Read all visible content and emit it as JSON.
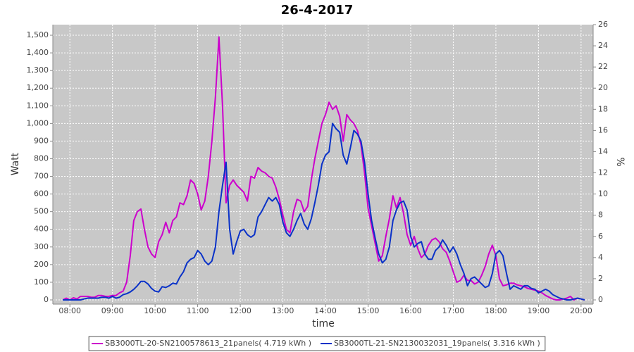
{
  "chart_data": {
    "type": "line",
    "title": "26-4-2017",
    "xlabel": "time",
    "ylabel": "Watt",
    "y2label": "%",
    "x": [
      "07:50",
      "07:55",
      "08:00",
      "08:05",
      "08:10",
      "08:15",
      "08:20",
      "08:25",
      "08:30",
      "08:35",
      "08:40",
      "08:45",
      "08:50",
      "08:55",
      "09:00",
      "09:05",
      "09:10",
      "09:15",
      "09:20",
      "09:25",
      "09:30",
      "09:35",
      "09:40",
      "09:45",
      "09:50",
      "09:55",
      "10:00",
      "10:05",
      "10:10",
      "10:15",
      "10:20",
      "10:25",
      "10:30",
      "10:35",
      "10:40",
      "10:45",
      "10:50",
      "10:55",
      "11:00",
      "11:05",
      "11:10",
      "11:15",
      "11:20",
      "11:25",
      "11:30",
      "11:35",
      "11:40",
      "11:45",
      "11:50",
      "11:55",
      "12:00",
      "12:05",
      "12:10",
      "12:15",
      "12:20",
      "12:25",
      "12:30",
      "12:35",
      "12:40",
      "12:45",
      "12:50",
      "12:55",
      "13:00",
      "13:05",
      "13:10",
      "13:15",
      "13:20",
      "13:25",
      "13:30",
      "13:35",
      "13:40",
      "13:45",
      "13:50",
      "13:55",
      "14:00",
      "14:05",
      "14:10",
      "14:15",
      "14:20",
      "14:25",
      "14:30",
      "14:35",
      "14:40",
      "14:45",
      "14:50",
      "14:55",
      "15:00",
      "15:05",
      "15:10",
      "15:15",
      "15:20",
      "15:25",
      "15:30",
      "15:35",
      "15:40",
      "15:45",
      "15:50",
      "15:55",
      "16:00",
      "16:05",
      "16:10",
      "16:15",
      "16:20",
      "16:25",
      "16:30",
      "16:35",
      "16:40",
      "16:45",
      "16:50",
      "16:55",
      "17:00",
      "17:05",
      "17:10",
      "17:15",
      "17:20",
      "17:25",
      "17:30",
      "17:35",
      "17:40",
      "17:45",
      "17:50",
      "17:55",
      "18:00",
      "18:05",
      "18:10",
      "18:15",
      "18:20",
      "18:25",
      "18:30",
      "18:35",
      "18:40",
      "18:45",
      "18:50",
      "18:55",
      "19:00",
      "19:05",
      "19:10",
      "19:15",
      "19:20",
      "19:25",
      "19:30",
      "19:35",
      "19:40",
      "19:45",
      "19:50",
      "19:55",
      "20:00",
      "20:05"
    ],
    "series": [
      {
        "name": "SB3000TL-20-SN2100578613_21panels( 4.719 kWh )",
        "color": "#cc00cc",
        "axis": "y",
        "values": [
          0,
          10,
          0,
          12,
          5,
          20,
          20,
          20,
          15,
          15,
          25,
          25,
          20,
          20,
          25,
          25,
          40,
          50,
          100,
          250,
          450,
          500,
          515,
          400,
          300,
          260,
          240,
          330,
          370,
          440,
          380,
          450,
          470,
          550,
          540,
          590,
          680,
          660,
          600,
          510,
          560,
          700,
          900,
          1150,
          1490,
          1100,
          550,
          650,
          680,
          650,
          630,
          610,
          560,
          700,
          690,
          750,
          730,
          720,
          700,
          690,
          640,
          570,
          480,
          400,
          380,
          500,
          570,
          560,
          500,
          530,
          680,
          800,
          900,
          1000,
          1050,
          1120,
          1080,
          1100,
          1040,
          900,
          1050,
          1020,
          1000,
          960,
          880,
          720,
          520,
          420,
          320,
          220,
          250,
          360,
          460,
          590,
          520,
          580,
          490,
          370,
          310,
          360,
          290,
          240,
          260,
          310,
          340,
          350,
          330,
          290,
          270,
          220,
          160,
          100,
          110,
          140,
          110,
          110,
          90,
          100,
          140,
          190,
          260,
          310,
          250,
          120,
          80,
          85,
          95,
          95,
          85,
          80,
          75,
          65,
          60,
          55,
          50,
          40,
          25,
          15,
          5,
          0,
          0,
          5,
          10,
          20,
          0,
          10,
          5,
          0
        ]
      },
      {
        "name": "SB3000TL-21-SN2130032031_19panels( 3.316 kWh )",
        "color": "#0a32c8",
        "axis": "y",
        "values": [
          0,
          0,
          0,
          0,
          0,
          0,
          5,
          10,
          10,
          10,
          10,
          15,
          15,
          10,
          20,
          10,
          15,
          30,
          35,
          45,
          60,
          80,
          105,
          105,
          90,
          65,
          50,
          45,
          75,
          70,
          80,
          95,
          90,
          130,
          160,
          210,
          230,
          240,
          280,
          260,
          220,
          200,
          220,
          300,
          500,
          650,
          780,
          400,
          260,
          330,
          390,
          400,
          370,
          355,
          370,
          470,
          500,
          540,
          580,
          560,
          580,
          540,
          440,
          380,
          360,
          400,
          450,
          490,
          430,
          400,
          460,
          550,
          650,
          770,
          820,
          840,
          1000,
          970,
          950,
          820,
          770,
          860,
          960,
          940,
          900,
          780,
          600,
          450,
          350,
          260,
          210,
          230,
          300,
          450,
          510,
          550,
          560,
          510,
          360,
          300,
          320,
          330,
          260,
          230,
          230,
          280,
          300,
          340,
          310,
          270,
          300,
          260,
          200,
          150,
          80,
          120,
          130,
          110,
          90,
          70,
          80,
          150,
          260,
          280,
          250,
          150,
          60,
          80,
          70,
          60,
          80,
          80,
          65,
          60,
          40,
          50,
          60,
          50,
          30,
          20,
          10,
          5,
          0,
          0,
          5,
          10,
          5,
          0
        ]
      }
    ],
    "xlim": [
      "07:36",
      "20:17"
    ],
    "xticks": [
      "08:00",
      "09:00",
      "10:00",
      "11:00",
      "12:00",
      "13:00",
      "14:00",
      "15:00",
      "16:00",
      "17:00",
      "18:00",
      "19:00",
      "20:00"
    ],
    "ylim": [
      -24,
      1560
    ],
    "yticks": [
      0,
      100,
      200,
      300,
      400,
      500,
      600,
      700,
      800,
      900,
      {
        "value": 1000,
        "label": "1,000"
      },
      {
        "value": 1100,
        "label": "1,100"
      },
      {
        "value": 1200,
        "label": "1,200"
      },
      {
        "value": 1300,
        "label": "1,300"
      },
      {
        "value": 1400,
        "label": "1,400"
      },
      {
        "value": 1500,
        "label": "1,500"
      }
    ],
    "y2lim": [
      -0.4,
      26
    ],
    "y2ticks": [
      0,
      2,
      4,
      6,
      8,
      10,
      12,
      14,
      16,
      18,
      20,
      22,
      24,
      26
    ],
    "grid": true,
    "legend": "bottom",
    "plot_background": "#c8c8c8"
  }
}
